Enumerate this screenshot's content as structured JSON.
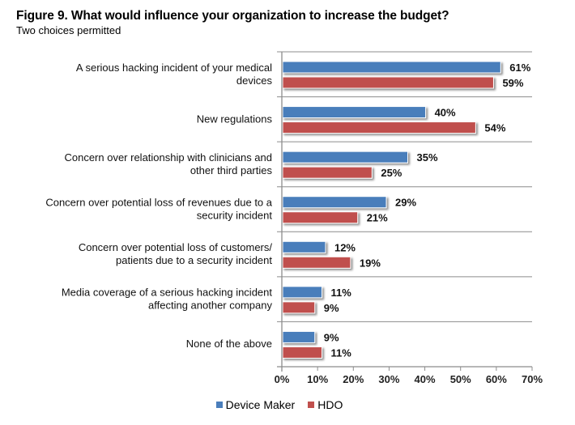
{
  "chart_data": {
    "type": "bar",
    "orientation": "horizontal",
    "title": "Figure 9. What would influence your organization to increase the budget?",
    "subtitle": "Two choices permitted",
    "xlabel": "",
    "ylabel": "",
    "xlim": [
      0,
      70
    ],
    "x_ticks": [
      0,
      10,
      20,
      30,
      40,
      50,
      60,
      70
    ],
    "x_tick_labels": [
      "0%",
      "10%",
      "20%",
      "30%",
      "40%",
      "50%",
      "60%",
      "70%"
    ],
    "grid": "horizontal separators between categories",
    "legend_position": "bottom-center",
    "categories": [
      [
        "A serious hacking incident of your medical",
        "devices"
      ],
      [
        "New regulations"
      ],
      [
        "Concern over relationship with clinicians and",
        "other third parties"
      ],
      [
        "Concern over potential loss of revenues due to a",
        "security incident"
      ],
      [
        "Concern over potential loss of customers/",
        "patients due to a security incident"
      ],
      [
        "Media coverage of a serious hacking incident",
        "affecting another company"
      ],
      [
        "None of the above"
      ]
    ],
    "series": [
      {
        "name": "Device Maker",
        "color": "#4A7EBB",
        "values": [
          61,
          40,
          35,
          29,
          12,
          11,
          9
        ],
        "labels": [
          "61%",
          "40%",
          "35%",
          "29%",
          "12%",
          "11%",
          "9%"
        ]
      },
      {
        "name": "HDO",
        "color": "#C0504D",
        "values": [
          59,
          54,
          25,
          21,
          19,
          9,
          11
        ],
        "labels": [
          "59%",
          "54%",
          "25%",
          "21%",
          "19%",
          "9%",
          "11%"
        ]
      }
    ]
  },
  "legend": {
    "items": [
      {
        "label": "Device Maker",
        "color": "#4A7EBB"
      },
      {
        "label": "HDO",
        "color": "#C0504D"
      }
    ]
  }
}
